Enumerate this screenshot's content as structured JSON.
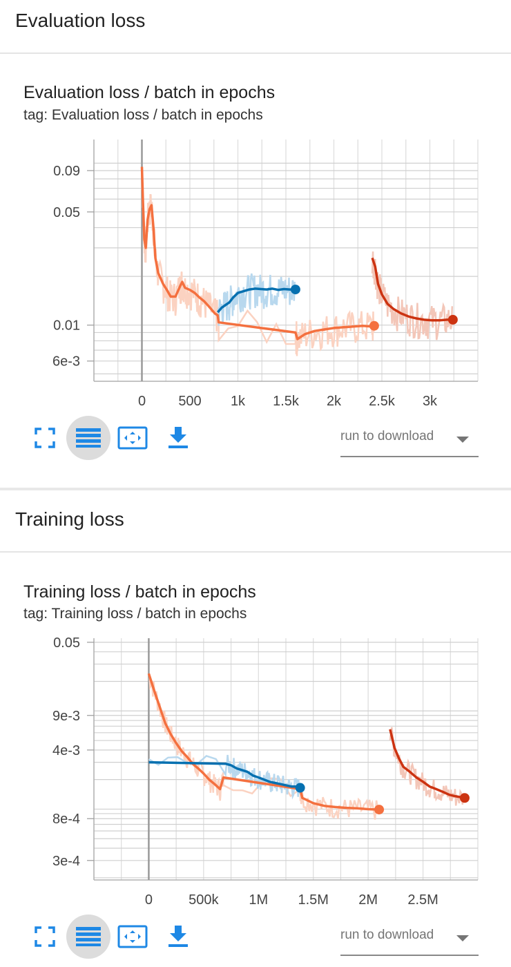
{
  "sections": [
    {
      "heading": "Evaluation loss",
      "card_title": "Evaluation loss / batch in epochs",
      "tag": "tag: Evaluation loss / batch in epochs"
    },
    {
      "heading": "Training loss",
      "card_title": "Training loss / batch in epochs",
      "tag": "tag: Training loss / batch in epochs"
    }
  ],
  "toolbar": {
    "run_select_label": "run to download",
    "icons": [
      "fullscreen-icon",
      "data-selection-icon",
      "fit-domain-icon",
      "download-icon"
    ]
  },
  "colors": {
    "orange": "#f4703f",
    "blue": "#0570b0",
    "red": "#cc3311",
    "orange_light": "#fbd2c1",
    "blue_light": "#b8d8ee",
    "red_light": "#f3c6b8"
  },
  "chart_data": [
    {
      "type": "line",
      "title": "Evaluation loss / batch in epochs",
      "yscale": "log",
      "ylim": [
        0.0045,
        0.14
      ],
      "xlim": [
        -500,
        3500
      ],
      "xticks": [
        0,
        500,
        1000,
        1500,
        2000,
        2500,
        3000
      ],
      "xtick_labels": [
        "0",
        "500",
        "1k",
        "1.5k",
        "2k",
        "2.5k",
        "3k"
      ],
      "yticks": [
        0.09,
        0.05,
        0.01,
        0.006
      ],
      "ytick_labels": [
        "0.09",
        "0.05",
        "0.01",
        "6e-3"
      ],
      "grid": true,
      "series": [
        {
          "color": "#f4703f",
          "x": [
            0,
            10,
            25,
            40,
            60,
            80,
            100,
            120,
            140,
            170,
            220,
            260,
            300,
            350,
            400,
            420,
            450,
            500,
            550,
            600,
            650,
            700,
            760,
            790,
            800,
            1600,
            1620,
            1700,
            1800,
            1900,
            2000,
            2100,
            2200,
            2300,
            2400,
            2420
          ],
          "y": [
            0.095,
            0.06,
            0.034,
            0.03,
            0.045,
            0.052,
            0.055,
            0.04,
            0.026,
            0.021,
            0.018,
            0.0165,
            0.015,
            0.015,
            0.0175,
            0.0185,
            0.017,
            0.0165,
            0.0158,
            0.0148,
            0.014,
            0.013,
            0.0118,
            0.0115,
            0.0104,
            0.009,
            0.0082,
            0.0088,
            0.0092,
            0.0094,
            0.0096,
            0.0097,
            0.0098,
            0.0099,
            0.0098,
            0.0099
          ]
        },
        {
          "color": "#0570b0",
          "x": [
            790,
            830,
            870,
            910,
            950,
            1000,
            1060,
            1120,
            1180,
            1240,
            1300,
            1360,
            1420,
            1480,
            1540,
            1600
          ],
          "y": [
            0.012,
            0.0128,
            0.0133,
            0.0138,
            0.0148,
            0.0158,
            0.0162,
            0.0166,
            0.0168,
            0.0167,
            0.0166,
            0.0168,
            0.0165,
            0.0167,
            0.0166,
            0.0166
          ]
        },
        {
          "color": "#cc3311",
          "x": [
            2400,
            2430,
            2460,
            2500,
            2560,
            2620,
            2700,
            2780,
            2860,
            2940,
            3020,
            3100,
            3180,
            3240
          ],
          "y": [
            0.026,
            0.023,
            0.018,
            0.0155,
            0.0135,
            0.0126,
            0.0118,
            0.0113,
            0.011,
            0.0108,
            0.0107,
            0.0107,
            0.0108,
            0.0108
          ]
        }
      ]
    },
    {
      "type": "line",
      "title": "Training loss / batch in epochs",
      "yscale": "log",
      "ylim": [
        0.00019,
        0.055
      ],
      "xlim": [
        -500000,
        3000000
      ],
      "xticks": [
        0,
        500000,
        1000000,
        1500000,
        2000000,
        2500000
      ],
      "xtick_labels": [
        "0",
        "500k",
        "1M",
        "1.5M",
        "2M",
        "2.5M"
      ],
      "yticks": [
        0.05,
        0.009,
        0.004,
        0.0008,
        0.0003
      ],
      "ytick_labels": [
        "0.05",
        "9e-3",
        "4e-3",
        "8e-4",
        "3e-4"
      ],
      "grid": true,
      "series": [
        {
          "color": "#f4703f",
          "x": [
            0,
            50000,
            100000,
            150000,
            200000,
            250000,
            300000,
            350000,
            400000,
            450000,
            500000,
            550000,
            600000,
            650000,
            680000,
            1380000,
            1400000,
            1500000,
            1600000,
            1700000,
            1800000,
            1900000,
            2000000,
            2100000
          ],
          "y": [
            0.024,
            0.016,
            0.011,
            0.0075,
            0.0058,
            0.0047,
            0.0039,
            0.0034,
            0.0029,
            0.0026,
            0.0023,
            0.002,
            0.0018,
            0.0016,
            0.0021,
            0.0016,
            0.0013,
            0.00115,
            0.00108,
            0.00105,
            0.00103,
            0.00102,
            0.001,
            0.00099
          ]
        },
        {
          "color": "#0570b0",
          "x": [
            690,
            700000,
            750000,
            800000,
            850000,
            900000,
            950000,
            1000000,
            1050000,
            1100000,
            1150000,
            1200000,
            1250000,
            1300000,
            1350000,
            1380000
          ],
          "y": [
            0.003,
            0.0029,
            0.0028,
            0.0026,
            0.0025,
            0.0024,
            0.0022,
            0.0021,
            0.002,
            0.0019,
            0.00185,
            0.0018,
            0.00175,
            0.0017,
            0.0017,
            0.00165
          ]
        },
        {
          "color": "#cc3311",
          "x": [
            2200000,
            2240000,
            2280000,
            2320000,
            2380000,
            2440000,
            2500000,
            2560000,
            2620000,
            2680000,
            2740000,
            2800000,
            2880000
          ],
          "y": [
            0.0065,
            0.0042,
            0.0033,
            0.0027,
            0.0024,
            0.0021,
            0.0019,
            0.0017,
            0.0016,
            0.0015,
            0.0014,
            0.00135,
            0.0013
          ]
        }
      ]
    }
  ]
}
